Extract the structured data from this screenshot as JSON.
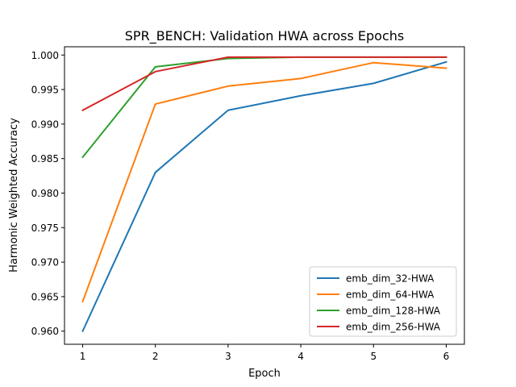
{
  "chart_data": {
    "type": "line",
    "title": "SPR_BENCH: Validation HWA across Epochs",
    "xlabel": "Epoch",
    "ylabel": "Harmonic Weighted Accuracy",
    "x": [
      1,
      2,
      3,
      4,
      5,
      6
    ],
    "xticks": [
      "1",
      "2",
      "3",
      "4",
      "5",
      "6"
    ],
    "yticks": [
      "0.960",
      "0.965",
      "0.970",
      "0.975",
      "0.980",
      "0.985",
      "0.990",
      "0.995",
      "1.000"
    ],
    "xlim": [
      0.75,
      6.25
    ],
    "ylim": [
      0.9581,
      1.0012
    ],
    "grid": false,
    "legend_position": "lower-right",
    "series": [
      {
        "name": "emb_dim_32-HWA",
        "color": "#1f77b4",
        "values": [
          0.96,
          0.983,
          0.992,
          0.9941,
          0.9959,
          0.999
        ]
      },
      {
        "name": "emb_dim_64-HWA",
        "color": "#ff7f0e",
        "values": [
          0.9643,
          0.9929,
          0.9955,
          0.9966,
          0.9989,
          0.9981
        ]
      },
      {
        "name": "emb_dim_128-HWA",
        "color": "#2ca02c",
        "values": [
          0.9852,
          0.9983,
          0.9995,
          0.9997,
          0.9997,
          0.9997
        ]
      },
      {
        "name": "emb_dim_256-HWA",
        "color": "#d62728",
        "values": [
          0.992,
          0.9976,
          0.9997,
          0.9997,
          0.9997,
          0.9997
        ]
      }
    ]
  }
}
